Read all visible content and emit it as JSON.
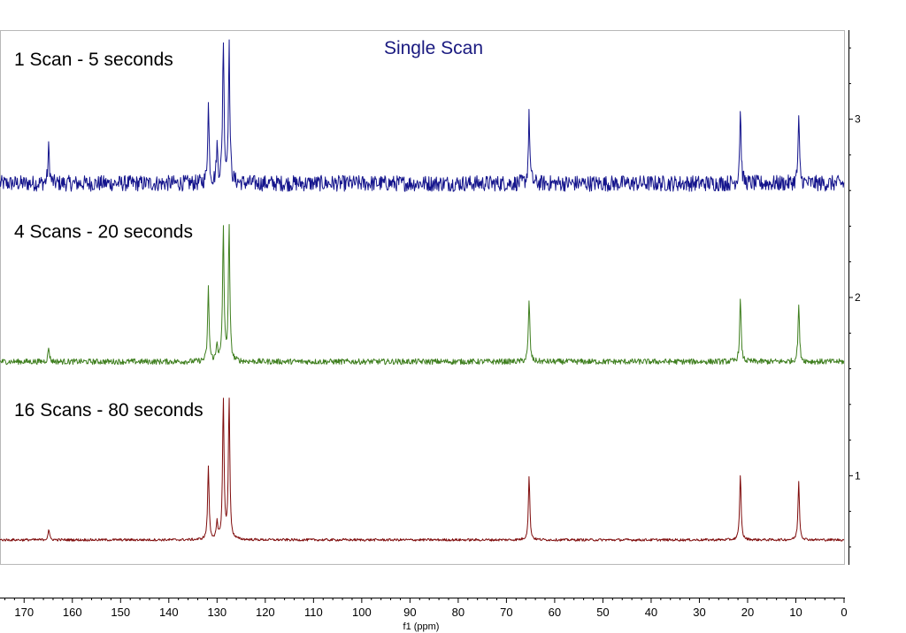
{
  "chart_data": {
    "type": "line",
    "title": "Single Scan",
    "xlabel": "f1 (ppm)",
    "xlim": [
      175,
      0
    ],
    "x_reversed": true,
    "x_ticks": [
      170,
      160,
      150,
      140,
      130,
      120,
      110,
      100,
      90,
      80,
      70,
      60,
      50,
      40,
      30,
      20,
      10,
      0
    ],
    "y_ticks": [
      1,
      2,
      3
    ],
    "ylim": [
      0.5,
      3.5
    ],
    "grid": false,
    "colors": {
      "title": "#1a1a80",
      "series_1": "#14148c",
      "series_2": "#3f7f1f",
      "series_3": "#7f0c0c"
    },
    "series": [
      {
        "name": "1 Scan - 5 seconds",
        "baseline": 2.64,
        "noise": 0.045,
        "peaks": [
          {
            "ppm": 164.9,
            "intensity": 0.2
          },
          {
            "ppm": 131.8,
            "intensity": 0.44
          },
          {
            "ppm": 130.0,
            "intensity": 0.2
          },
          {
            "ppm": 128.7,
            "intensity": 0.8
          },
          {
            "ppm": 127.5,
            "intensity": 0.76
          },
          {
            "ppm": 65.3,
            "intensity": 0.38
          },
          {
            "ppm": 21.5,
            "intensity": 0.41
          },
          {
            "ppm": 9.4,
            "intensity": 0.35
          }
        ]
      },
      {
        "name": "4 Scans - 20 seconds",
        "baseline": 1.64,
        "noise": 0.016,
        "peaks": [
          {
            "ppm": 164.9,
            "intensity": 0.08
          },
          {
            "ppm": 131.8,
            "intensity": 0.41
          },
          {
            "ppm": 130.0,
            "intensity": 0.1
          },
          {
            "ppm": 128.7,
            "intensity": 0.75
          },
          {
            "ppm": 127.5,
            "intensity": 0.75
          },
          {
            "ppm": 65.3,
            "intensity": 0.35
          },
          {
            "ppm": 21.5,
            "intensity": 0.35
          },
          {
            "ppm": 9.4,
            "intensity": 0.32
          }
        ]
      },
      {
        "name": "16 Scans - 80 seconds",
        "baseline": 0.64,
        "noise": 0.007,
        "peaks": [
          {
            "ppm": 164.9,
            "intensity": 0.06
          },
          {
            "ppm": 131.8,
            "intensity": 0.41
          },
          {
            "ppm": 130.0,
            "intensity": 0.09
          },
          {
            "ppm": 128.7,
            "intensity": 0.79
          },
          {
            "ppm": 127.5,
            "intensity": 0.79
          },
          {
            "ppm": 65.3,
            "intensity": 0.36
          },
          {
            "ppm": 21.5,
            "intensity": 0.37
          },
          {
            "ppm": 9.4,
            "intensity": 0.33
          }
        ]
      }
    ]
  }
}
